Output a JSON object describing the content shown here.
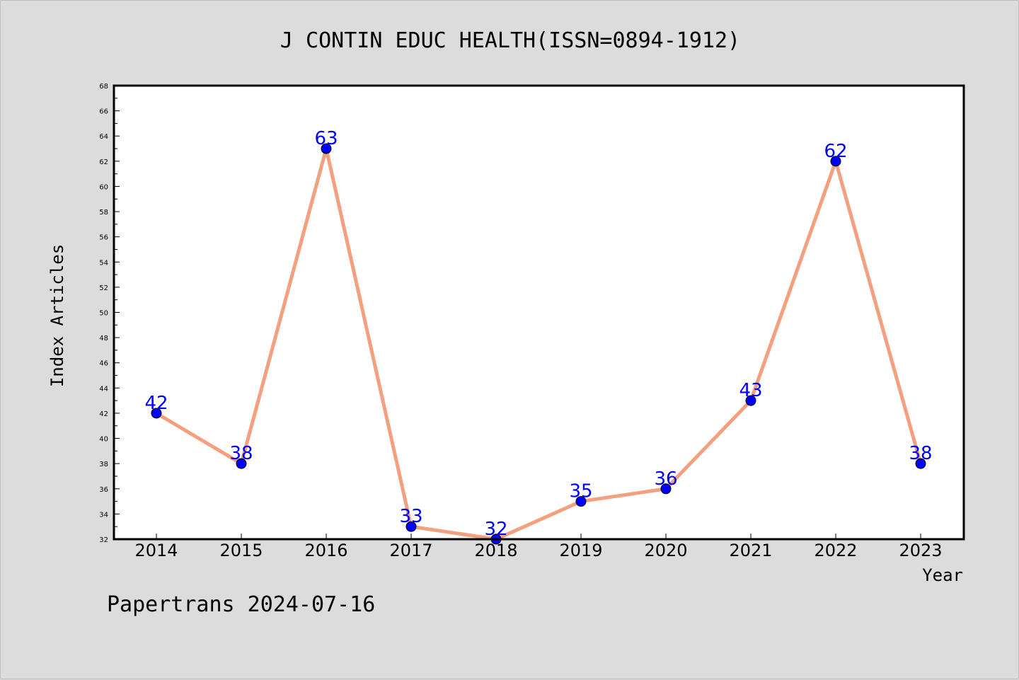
{
  "chart_data": {
    "type": "line",
    "title": "J CONTIN EDUC HEALTH(ISSN=0894-1912)",
    "xlabel": "Year",
    "ylabel": "Index Articles",
    "categories": [
      "2014",
      "2015",
      "2016",
      "2017",
      "2018",
      "2019",
      "2020",
      "2021",
      "2022",
      "2023"
    ],
    "series": [
      {
        "values": [
          42,
          38,
          63,
          33,
          32,
          35,
          36,
          43,
          62,
          38
        ]
      }
    ],
    "ylim": [
      32,
      68
    ],
    "yticks": [
      "32",
      "34",
      "36",
      "38",
      "40",
      "42",
      "44",
      "46",
      "48",
      "50",
      "52",
      "54",
      "56",
      "58",
      "60",
      "62",
      "64",
      "66",
      "68"
    ],
    "grid": false,
    "data_labels": true,
    "colors": {
      "line": "#f4a07e",
      "marker": "#0000ff",
      "label": "#0000ff",
      "background": "#dcdcdc",
      "plot_background": "#ffffff"
    }
  },
  "footer": "Papertrans 2024-07-16"
}
